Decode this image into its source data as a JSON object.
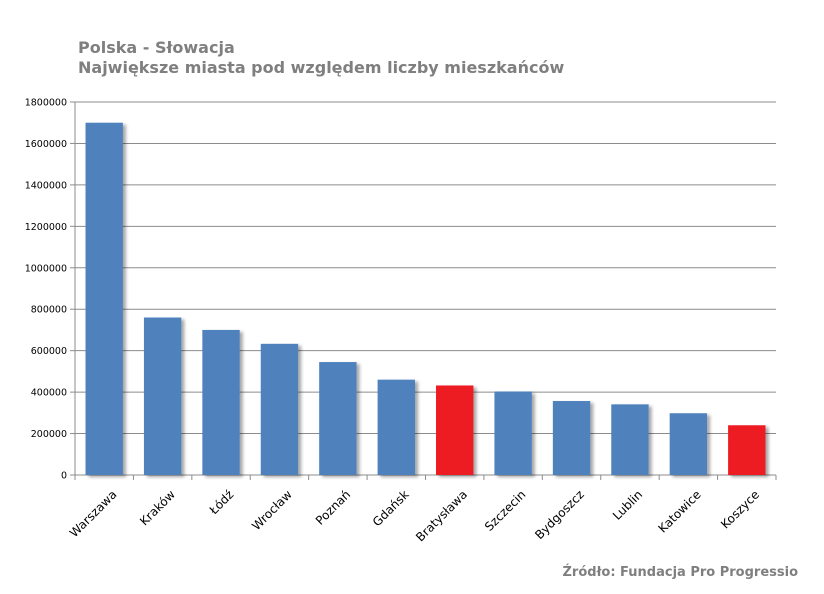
{
  "chart_data": {
    "type": "bar",
    "title": "Polska - Słowacja",
    "subtitle": "Największe miasta pod względem liczby mieszkańców",
    "source": "Źródło: Fundacja Pro Progressio",
    "xlabel": "",
    "ylabel": "",
    "ylim": [
      0,
      1800000
    ],
    "yticks": [
      0,
      200000,
      400000,
      600000,
      800000,
      1000000,
      1200000,
      1400000,
      1600000,
      1800000
    ],
    "grid": true,
    "legend": "none",
    "categories": [
      "Warszawa",
      "Kraków",
      "Łódź",
      "Wrocław",
      "Poznań",
      "Gdańsk",
      "Bratysława",
      "Szczecin",
      "Bydgoszcz",
      "Lublin",
      "Katowice",
      "Koszyce"
    ],
    "values": [
      1700000,
      760000,
      700000,
      633000,
      545000,
      460000,
      432000,
      403000,
      357000,
      341000,
      298000,
      240000
    ],
    "country": [
      "PL",
      "PL",
      "PL",
      "PL",
      "PL",
      "PL",
      "SK",
      "PL",
      "PL",
      "PL",
      "PL",
      "SK"
    ],
    "colors": {
      "PL": "#4f81bd",
      "SK": "#ed1c24"
    }
  }
}
